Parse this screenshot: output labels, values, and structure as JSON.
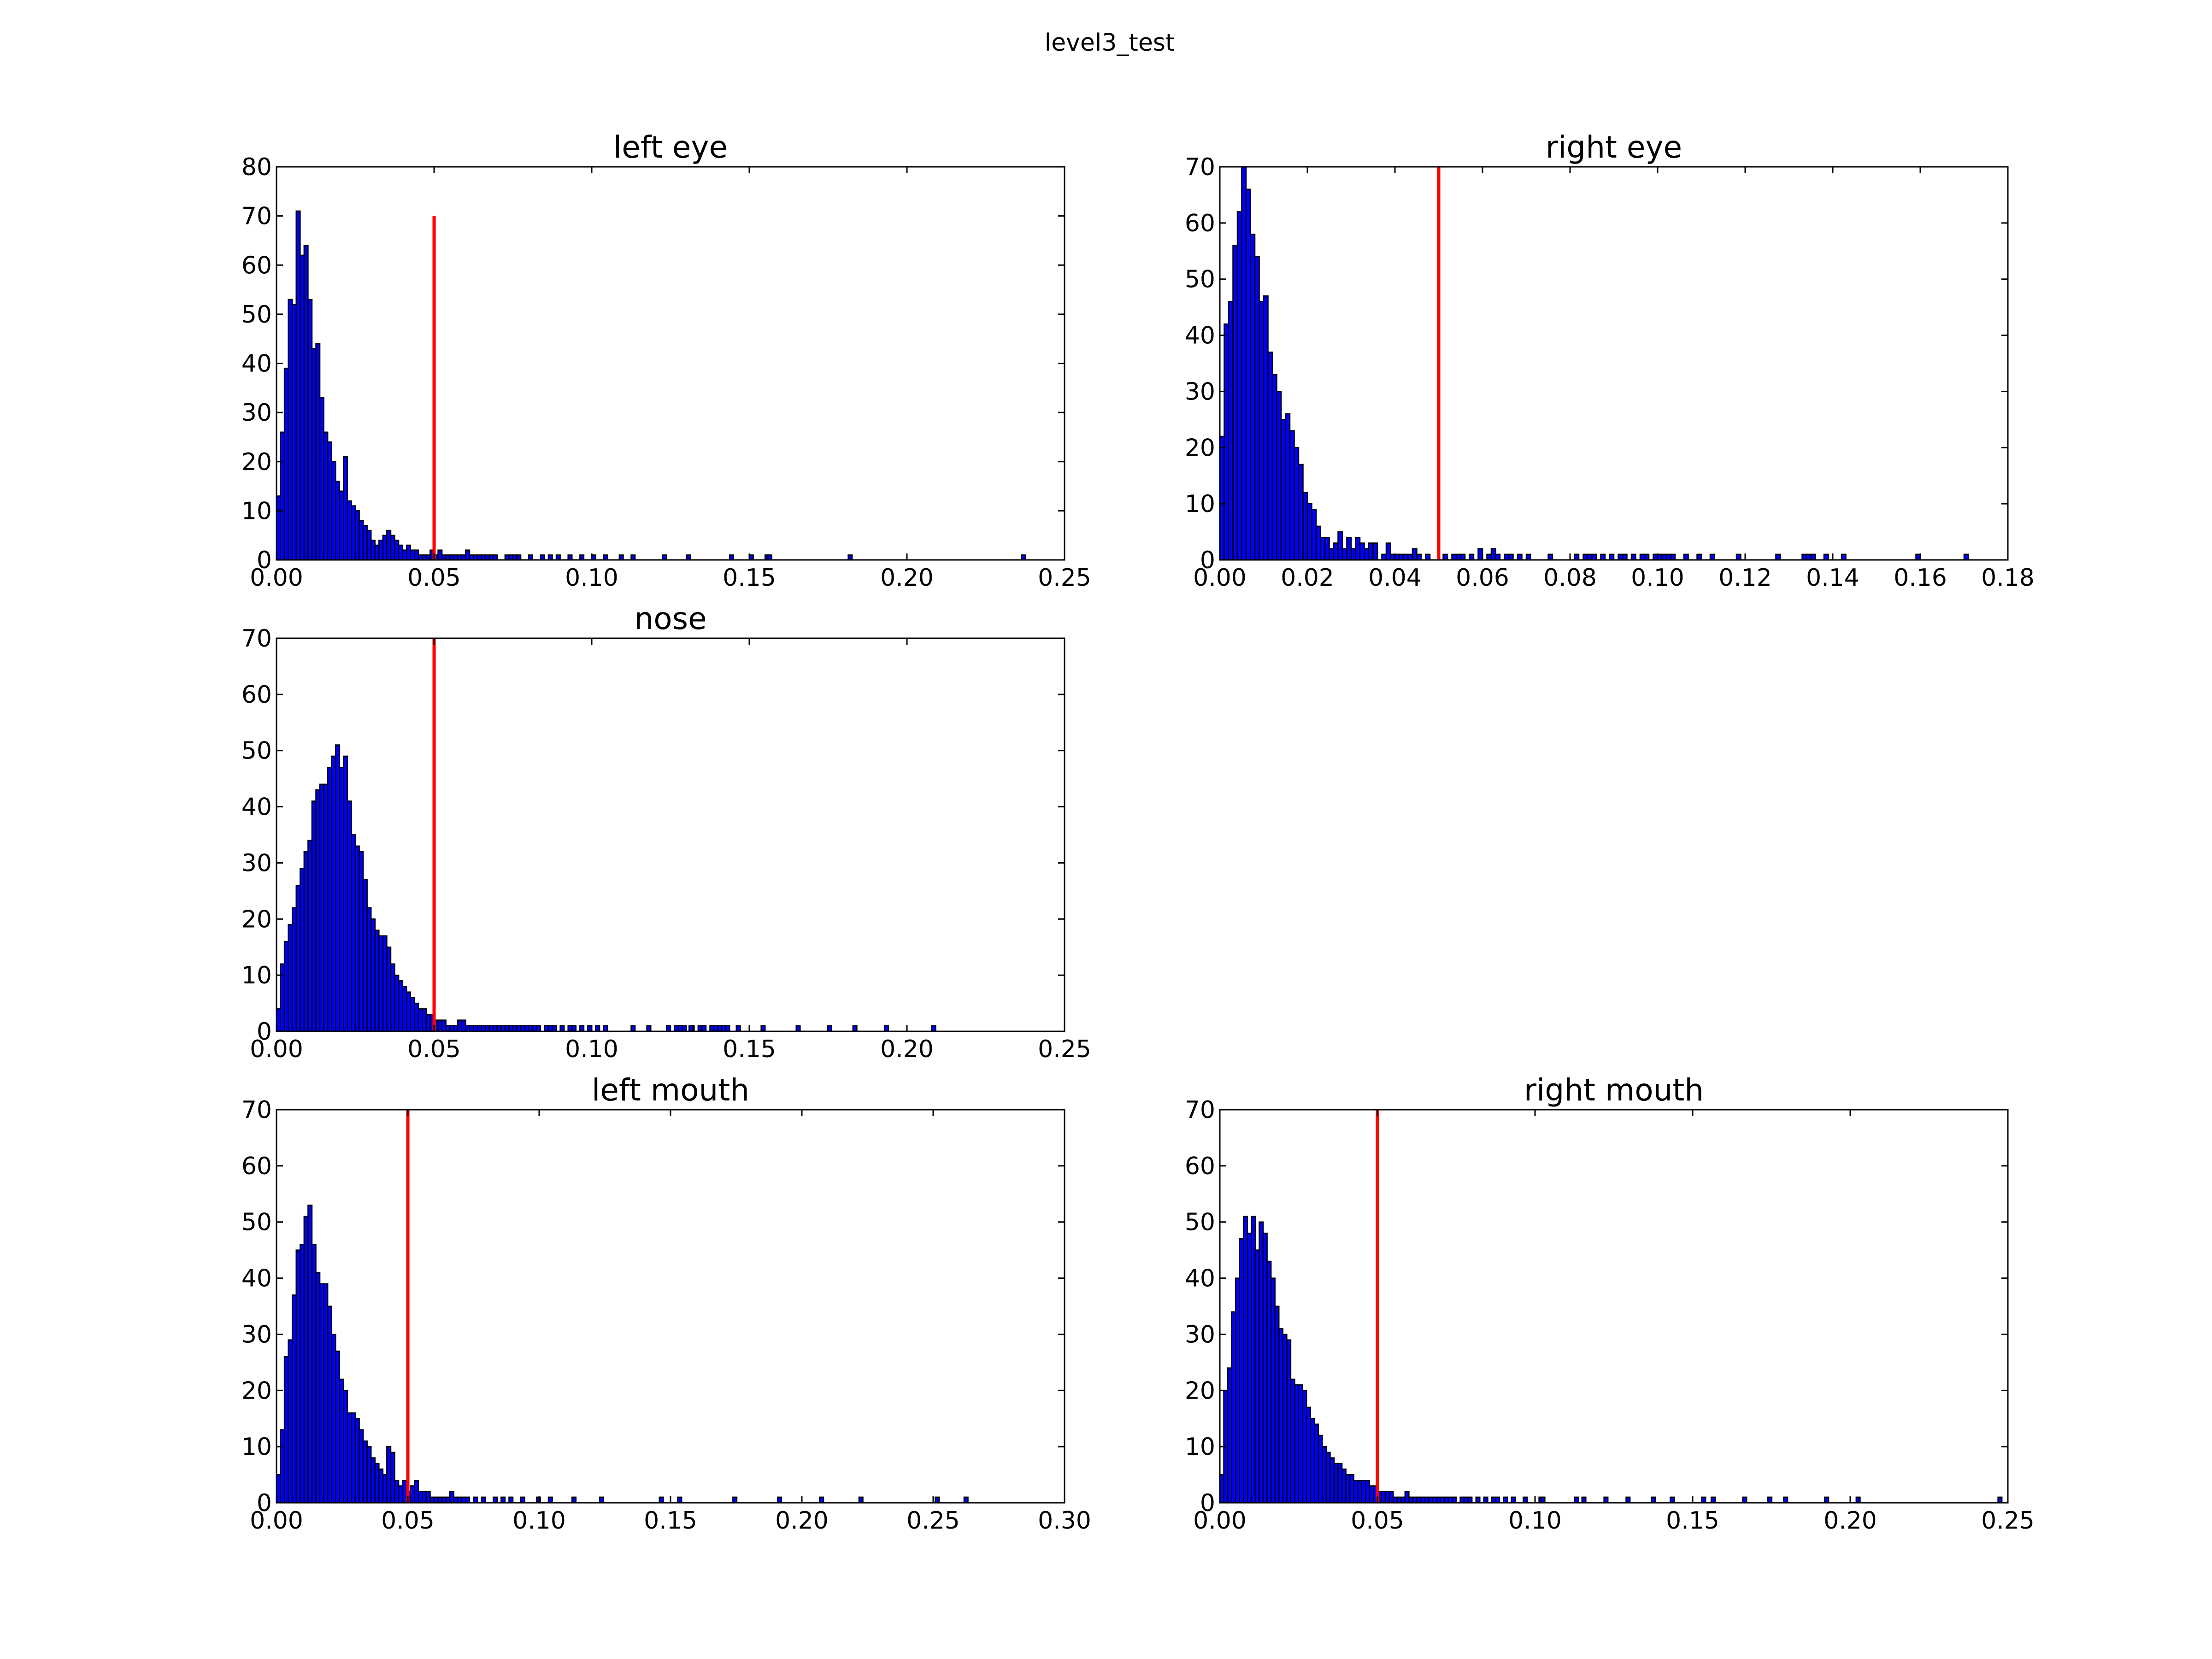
{
  "figure": {
    "title": "level3_test"
  },
  "colors": {
    "bar_fill": "#0000ff",
    "bar_edge": "#000000",
    "reference_line": "#ff0000"
  },
  "chart_data": [
    {
      "type": "bar",
      "title": "left eye",
      "xlim": [
        0,
        0.25
      ],
      "ylim": [
        0,
        80
      ],
      "xticks": [
        "0.00",
        "0.05",
        "0.10",
        "0.15",
        "0.20",
        "0.25"
      ],
      "yticks": [
        "0",
        "10",
        "20",
        "30",
        "40",
        "50",
        "60",
        "70",
        "80"
      ],
      "bin_width": 0.00125,
      "counts": [
        13,
        26,
        39,
        53,
        52,
        71,
        62,
        64,
        53,
        43,
        44,
        33,
        26,
        24,
        20,
        16,
        14,
        21,
        12,
        11,
        10,
        8,
        7,
        6,
        4,
        3,
        4,
        5,
        6,
        5,
        4,
        3,
        2,
        3,
        2,
        2,
        1,
        1,
        1,
        2,
        1,
        2,
        1,
        1,
        1,
        1,
        1,
        1,
        2,
        1,
        1,
        1,
        1,
        1,
        1,
        1,
        0,
        0,
        1,
        1,
        1,
        1,
        0,
        0,
        1,
        0,
        0,
        1,
        0,
        1,
        0,
        1,
        0,
        0,
        1,
        0,
        0,
        1,
        0,
        0,
        1,
        0,
        0,
        1,
        0,
        0,
        0,
        1,
        0,
        0,
        1,
        0,
        0,
        0,
        0,
        0,
        0,
        0,
        1,
        0,
        0,
        0,
        0,
        0,
        1,
        0,
        0,
        0,
        0,
        0,
        0,
        0,
        0,
        0,
        0,
        1,
        0,
        0,
        0,
        0,
        1,
        0,
        0,
        0,
        1,
        0,
        0,
        0,
        0,
        0,
        0,
        0,
        0,
        0,
        0,
        0,
        0,
        0,
        0,
        0,
        0,
        0,
        0,
        0,
        0,
        0,
        0,
        0,
        0,
        0,
        0,
        0,
        0,
        0,
        0,
        0,
        0,
        0,
        0,
        0,
        0,
        0,
        0,
        0,
        0,
        0,
        0,
        0,
        0,
        0,
        0,
        0,
        0,
        0,
        0,
        0,
        0,
        0,
        0,
        0,
        0,
        0,
        0,
        0,
        0,
        0,
        0,
        0,
        0,
        0,
        0,
        0,
        0,
        0,
        0,
        0,
        0,
        0,
        0,
        0
      ],
      "extra_bars": [
        {
          "x": 0.1565,
          "count": 1
        },
        {
          "x": 0.182,
          "count": 1
        },
        {
          "x": 0.237,
          "count": 1
        }
      ],
      "vline": {
        "x": 0.05,
        "ymax": 70
      }
    },
    {
      "type": "bar",
      "title": "right eye",
      "xlim": [
        0,
        0.18
      ],
      "ylim": [
        0,
        70
      ],
      "xticks": [
        "0.00",
        "0.02",
        "0.04",
        "0.06",
        "0.08",
        "0.10",
        "0.12",
        "0.14",
        "0.16",
        "0.18"
      ],
      "yticks": [
        "0",
        "10",
        "20",
        "30",
        "40",
        "50",
        "60",
        "70"
      ],
      "bin_width": 0.001,
      "counts": [
        22,
        42,
        46,
        56,
        62,
        70,
        66,
        58,
        54,
        46,
        47,
        37,
        33,
        30,
        25,
        26,
        23,
        20,
        17,
        12,
        10,
        9,
        6,
        4,
        4,
        2,
        3,
        5,
        2,
        4,
        2,
        4,
        3,
        2,
        3,
        3,
        0,
        1,
        3,
        1,
        1,
        1,
        1,
        1,
        2,
        1,
        0,
        1,
        0,
        0,
        0,
        1,
        0,
        1,
        1,
        1,
        0,
        1,
        0,
        2,
        0,
        1,
        2,
        1,
        0,
        1,
        1,
        0,
        1,
        0,
        1,
        0,
        0,
        0,
        0,
        1,
        0,
        0,
        0,
        0,
        0,
        1,
        0,
        1,
        1,
        1,
        0,
        1,
        0,
        1,
        0,
        1,
        1,
        0,
        1,
        0,
        1,
        1,
        0,
        1,
        1,
        1,
        1,
        1,
        0,
        0,
        1,
        0,
        0,
        1,
        0,
        0,
        1,
        0,
        0,
        0,
        0,
        0,
        1,
        0,
        0,
        0,
        0,
        0,
        0,
        0,
        0,
        1,
        0,
        0,
        0,
        0,
        0,
        1,
        1,
        1,
        0,
        0,
        1,
        0,
        0,
        0,
        1,
        0,
        0,
        0,
        0,
        0,
        0,
        0,
        0,
        0,
        0,
        0,
        0,
        0,
        0,
        0,
        0,
        0,
        0,
        0,
        0,
        0,
        0,
        0,
        0,
        0,
        0,
        0,
        0,
        0,
        0,
        0,
        0,
        0,
        0,
        0,
        0,
        0
      ],
      "extra_bars": [
        {
          "x": 0.1595,
          "count": 1
        },
        {
          "x": 0.1705,
          "count": 1
        }
      ],
      "vline": {
        "x": 0.05,
        "ymax": 70
      }
    },
    {
      "type": "bar",
      "title": "nose",
      "xlim": [
        0,
        0.25
      ],
      "ylim": [
        0,
        70
      ],
      "xticks": [
        "0.00",
        "0.05",
        "0.10",
        "0.15",
        "0.20",
        "0.25"
      ],
      "yticks": [
        "0",
        "10",
        "20",
        "30",
        "40",
        "50",
        "60",
        "70"
      ],
      "bin_width": 0.00125,
      "counts": [
        4,
        12,
        16,
        19,
        22,
        26,
        29,
        32,
        34,
        41,
        43,
        44,
        44,
        47,
        49,
        51,
        47,
        49,
        41,
        35,
        33,
        32,
        27,
        22,
        20,
        18,
        17,
        17,
        15,
        12,
        10,
        9,
        8,
        7,
        6,
        5,
        4,
        4,
        3,
        3,
        2,
        2,
        2,
        1,
        1,
        1,
        2,
        2,
        1,
        1,
        1,
        1,
        1,
        1,
        1,
        1,
        1,
        1,
        1,
        1,
        1,
        1,
        1,
        1,
        1,
        1,
        1,
        0,
        1,
        1,
        1,
        0,
        1,
        0,
        1,
        1,
        0,
        1,
        0,
        1,
        0,
        1,
        0,
        1,
        0,
        0,
        0,
        0,
        0,
        0,
        1,
        0,
        0,
        0,
        1,
        0,
        0,
        0,
        0,
        1,
        0,
        1,
        1,
        1,
        0,
        1,
        0,
        1,
        1,
        0,
        1,
        1,
        1,
        1,
        1,
        0,
        0,
        0,
        0,
        0,
        0,
        0,
        0,
        1,
        0,
        0,
        0,
        0,
        0,
        0,
        0,
        0,
        0,
        0,
        0,
        0,
        0,
        0,
        0,
        0,
        0,
        0,
        0,
        0,
        0,
        0,
        0,
        0,
        0,
        0,
        0,
        0,
        0,
        0,
        0,
        0,
        0,
        0,
        0,
        0,
        0,
        0,
        0,
        0,
        0,
        0,
        0,
        0,
        0,
        0,
        0,
        0,
        0,
        0,
        0,
        0,
        0,
        0,
        0,
        0,
        0,
        0,
        0,
        0,
        0,
        0,
        0,
        0,
        0,
        0,
        0,
        0,
        0,
        0,
        0,
        0,
        0,
        0,
        0,
        0
      ],
      "extra_bars": [
        {
          "x": 0.1315,
          "count": 1
        },
        {
          "x": 0.1465,
          "count": 1
        },
        {
          "x": 0.1655,
          "count": 1
        },
        {
          "x": 0.1755,
          "count": 1
        },
        {
          "x": 0.1835,
          "count": 1
        },
        {
          "x": 0.1935,
          "count": 1
        },
        {
          "x": 0.2085,
          "count": 1
        }
      ],
      "vline": {
        "x": 0.05,
        "ymax": 70
      }
    },
    {
      "type": "bar",
      "title": "left mouth",
      "xlim": [
        0,
        0.3
      ],
      "ylim": [
        0,
        70
      ],
      "xticks": [
        "0.00",
        "0.05",
        "0.10",
        "0.15",
        "0.20",
        "0.25",
        "0.30"
      ],
      "yticks": [
        "0",
        "10",
        "20",
        "30",
        "40",
        "50",
        "60",
        "70"
      ],
      "bin_width": 0.0015,
      "counts": [
        5,
        13,
        26,
        29,
        37,
        45,
        46,
        51,
        53,
        46,
        41,
        39,
        39,
        35,
        30,
        27,
        22,
        20,
        16,
        16,
        15,
        13,
        11,
        10,
        8,
        7,
        6,
        5,
        10,
        9,
        4,
        3,
        4,
        2,
        3,
        4,
        2,
        2,
        2,
        1,
        1,
        1,
        1,
        1,
        2,
        1,
        1,
        1,
        1,
        0,
        1,
        0,
        1,
        0,
        0,
        1,
        0,
        1,
        0,
        1,
        0,
        0,
        1,
        0,
        0,
        0,
        1,
        0,
        0,
        1,
        0,
        0,
        0,
        0,
        0,
        1,
        0,
        0,
        0,
        0,
        0,
        0,
        1,
        0,
        0,
        0,
        0,
        0,
        0,
        0,
        0,
        0,
        0,
        0,
        0,
        0,
        0,
        0,
        0,
        0,
        0,
        0,
        0,
        0,
        0,
        0,
        0,
        0,
        0,
        0,
        0,
        0,
        0,
        0,
        0,
        0,
        0,
        0,
        0,
        0,
        0,
        0,
        0,
        0,
        0,
        0,
        0,
        0,
        0,
        0,
        0,
        0,
        0,
        0,
        0,
        0,
        0,
        0,
        0,
        0,
        0,
        0,
        0,
        0,
        0,
        0,
        0,
        0,
        0,
        0,
        0,
        0,
        0,
        0,
        0,
        0,
        0,
        0,
        0,
        0,
        0,
        0,
        0,
        0,
        0,
        0,
        0,
        0,
        0,
        0,
        0,
        0,
        0,
        0,
        0,
        0,
        0,
        0,
        0,
        0,
        0,
        0,
        0,
        0,
        0,
        0,
        0,
        0,
        0,
        0,
        0,
        0,
        0,
        0,
        0,
        0,
        0,
        0,
        0,
        0
      ],
      "extra_bars": [
        {
          "x": 0.1465,
          "count": 1
        },
        {
          "x": 0.1535,
          "count": 1
        },
        {
          "x": 0.1745,
          "count": 1
        },
        {
          "x": 0.1915,
          "count": 1
        },
        {
          "x": 0.2075,
          "count": 1
        },
        {
          "x": 0.2225,
          "count": 1
        },
        {
          "x": 0.2515,
          "count": 1
        },
        {
          "x": 0.2625,
          "count": 1
        }
      ],
      "vline": {
        "x": 0.05,
        "ymax": 70
      }
    },
    {
      "type": "bar",
      "title": "right mouth",
      "xlim": [
        0,
        0.25
      ],
      "ylim": [
        0,
        70
      ],
      "xticks": [
        "0.00",
        "0.05",
        "0.10",
        "0.15",
        "0.20",
        "0.25"
      ],
      "yticks": [
        "0",
        "10",
        "20",
        "30",
        "40",
        "50",
        "60",
        "70"
      ],
      "bin_width": 0.00125,
      "counts": [
        5,
        20,
        24,
        34,
        40,
        47,
        51,
        48,
        51,
        45,
        50,
        48,
        43,
        40,
        35,
        31,
        30,
        29,
        22,
        21,
        21,
        20,
        17,
        15,
        14,
        12,
        10,
        9,
        8,
        7,
        7,
        6,
        5,
        5,
        4,
        4,
        4,
        4,
        3,
        3,
        2,
        2,
        2,
        2,
        1,
        1,
        1,
        2,
        1,
        1,
        1,
        1,
        1,
        1,
        1,
        1,
        1,
        1,
        1,
        1,
        0,
        1,
        1,
        1,
        0,
        1,
        0,
        1,
        0,
        1,
        1,
        0,
        1,
        0,
        1,
        0,
        0,
        1,
        0,
        0,
        0,
        1,
        0,
        0,
        0,
        0,
        0,
        0,
        0,
        0,
        1,
        0,
        0,
        0,
        0,
        0,
        0,
        0,
        0,
        0,
        0,
        0,
        0,
        0,
        0,
        0,
        0,
        0,
        0,
        0,
        0,
        0,
        0,
        0,
        0,
        0,
        0,
        0,
        0,
        0,
        0,
        0,
        0,
        0,
        0,
        0,
        0,
        0,
        0,
        0,
        0,
        0,
        0,
        0,
        0,
        0,
        0,
        0,
        0,
        0,
        0,
        0,
        0,
        0,
        0,
        0,
        0,
        0,
        0,
        0,
        0,
        0,
        0,
        0,
        0,
        0,
        0,
        0,
        0,
        0,
        0,
        0,
        0,
        0,
        0,
        0,
        0,
        0,
        0,
        0,
        0,
        0,
        0,
        0,
        0,
        0,
        0,
        0,
        0,
        0,
        0,
        0,
        0,
        0,
        0,
        0,
        0,
        0,
        0,
        0,
        0,
        0,
        0,
        0,
        0,
        0,
        0,
        0,
        0,
        0
      ],
      "extra_bars": [
        {
          "x": 0.1025,
          "count": 1
        },
        {
          "x": 0.1155,
          "count": 1
        },
        {
          "x": 0.1225,
          "count": 1
        },
        {
          "x": 0.1295,
          "count": 1
        },
        {
          "x": 0.1375,
          "count": 1
        },
        {
          "x": 0.1435,
          "count": 1
        },
        {
          "x": 0.1535,
          "count": 1
        },
        {
          "x": 0.1565,
          "count": 1
        },
        {
          "x": 0.1665,
          "count": 1
        },
        {
          "x": 0.1745,
          "count": 1
        },
        {
          "x": 0.1795,
          "count": 1
        },
        {
          "x": 0.1925,
          "count": 1
        },
        {
          "x": 0.2025,
          "count": 1
        },
        {
          "x": 0.2475,
          "count": 1
        }
      ],
      "vline": {
        "x": 0.05,
        "ymax": 70
      }
    }
  ]
}
